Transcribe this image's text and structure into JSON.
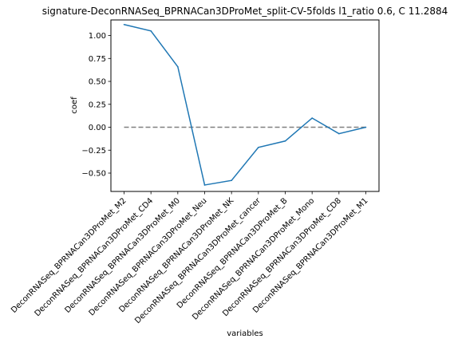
{
  "chart_data": {
    "type": "line",
    "title": "signature-DeconRNASeq_BPRNACan3DProMet_split-CV-5folds l1_ratio 0.6, C 11.2884",
    "xlabel": "variables",
    "ylabel": "coef",
    "categories": [
      "DeconRNASeq_BPRNACan3DProMet_M2",
      "DeconRNASeq_BPRNACan3DProMet_CD4",
      "DeconRNASeq_BPRNACan3DProMet_M0",
      "DeconRNASeq_BPRNACan3DProMet_Neu",
      "DeconRNASeq_BPRNACan3DProMet_NK",
      "DeconRNASeq_BPRNACan3DProMet_cancer",
      "DeconRNASeq_BPRNACan3DProMet_B",
      "DeconRNASeq_BPRNACan3DProMet_Mono",
      "DeconRNASeq_BPRNACan3DProMet_CD8",
      "DeconRNASeq_BPRNACan3DProMet_M1"
    ],
    "series": [
      {
        "values": [
          1.12,
          1.05,
          0.66,
          -0.63,
          -0.58,
          -0.22,
          -0.15,
          0.1,
          -0.07,
          0.0
        ]
      }
    ],
    "reference_line": {
      "y": 0.0,
      "style": "dashed",
      "color": "#808080"
    },
    "ylim": [
      -0.7,
      1.17
    ],
    "yticks": [
      -0.5,
      -0.25,
      0.0,
      0.25,
      0.5,
      0.75,
      1.0
    ],
    "ytick_labels": [
      "−0.50",
      "−0.25",
      "0.00",
      "0.25",
      "0.50",
      "0.75",
      "1.00"
    ],
    "line_color": "#1f77b4",
    "grid": false
  }
}
